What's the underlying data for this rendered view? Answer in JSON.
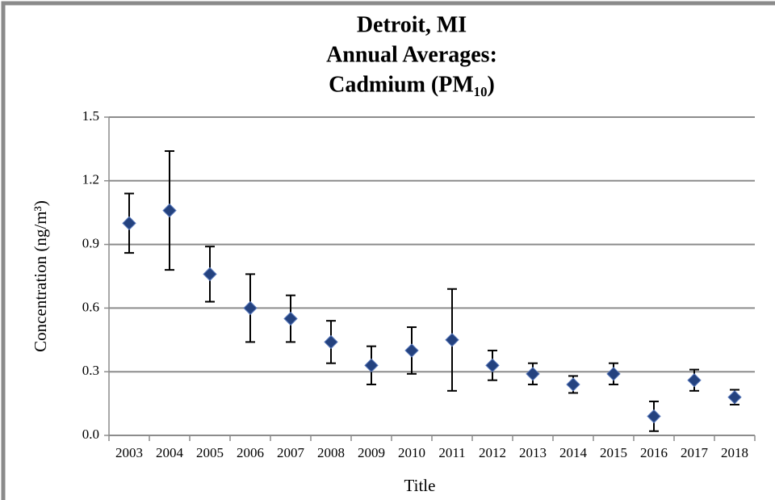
{
  "chart_data": {
    "type": "errorbar-scatter",
    "title": [
      "Detroit, MI",
      "Annual Averages:",
      "Cadmium (PM₁₀)"
    ],
    "x_label": "Title",
    "y_label": "Concentration (ng/m³)",
    "categories": [
      "2003",
      "2004",
      "2005",
      "2006",
      "2007",
      "2008",
      "2009",
      "2010",
      "2011",
      "2012",
      "2013",
      "2014",
      "2015",
      "2016",
      "2017",
      "2018"
    ],
    "values": [
      1.0,
      1.06,
      0.76,
      0.6,
      0.55,
      0.44,
      0.33,
      0.4,
      0.45,
      0.33,
      0.29,
      0.24,
      0.29,
      0.09,
      0.26,
      0.18
    ],
    "errors": [
      0.14,
      0.28,
      0.13,
      0.16,
      0.11,
      0.1,
      0.09,
      0.11,
      0.24,
      0.07,
      0.05,
      0.04,
      0.05,
      0.07,
      0.05,
      0.035
    ],
    "color": "#24427f",
    "ylim": [
      0,
      1.5
    ],
    "yticks": [
      {
        "value": 0,
        "label": "0.0"
      },
      0.3,
      0.6,
      0.9,
      1.2,
      1.5
    ],
    "grid": true
  }
}
